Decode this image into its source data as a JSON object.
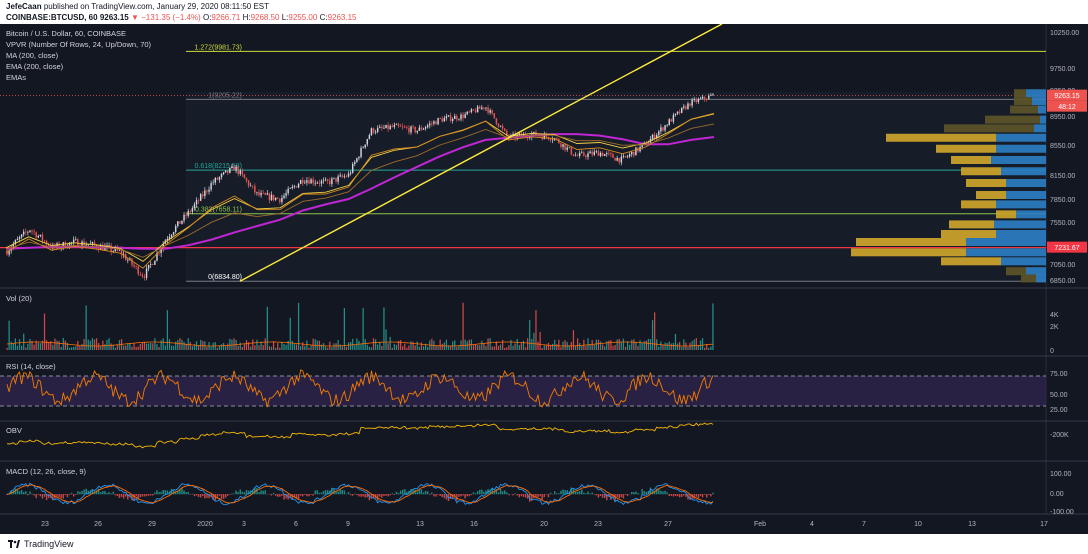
{
  "header": {
    "author": "JefeCaan",
    "published": "published on TradingView.com, January 29, 2020 08:11:50 EST",
    "symbol": "COINBASE:BTCUSD, 60",
    "price": "9263.15",
    "change": "−131.35 (−1.4%)",
    "o_label": "O:",
    "o": "9266.71",
    "h_label": "H:",
    "h": "9268.50",
    "l_label": "L:",
    "l": "9255.00",
    "c_label": "C:",
    "c": "9263.15"
  },
  "legend": [
    "Bitcoin / U.S. Dollar, 60, COINBASE",
    "VPVR (Number Of Rows, 24, Up/Down, 70)",
    "MA (200, close)",
    "EMA (200, close)",
    "EMAs"
  ],
  "panes": {
    "vol_label": "Vol (20)",
    "rsi_label": "RSI (14, close)",
    "obv_label": "OBV",
    "macd_label": "MACD (12, 26, close, 9)"
  },
  "fib_levels": [
    {
      "label": "1.272(9981.73)",
      "value": 9981.73,
      "color": "#cddc39"
    },
    {
      "label": "1(9205.22)",
      "value": 9205.22,
      "color": "#787b86"
    },
    {
      "label": "0.618(8215.58)",
      "value": 8215.58,
      "color": "#26a69a"
    },
    {
      "label": "0.382(7658.11)",
      "value": 7658.11,
      "color": "#8bc34a"
    },
    {
      "label": "0(6834.80)",
      "value": 6834.8,
      "color": "#787b86"
    }
  ],
  "price_badges": {
    "last": "9263.15",
    "countdown": "48:12",
    "level": "7231.67"
  },
  "footer": {
    "brand": "TradingView"
  },
  "chart_data": [
    {
      "type": "candlestick",
      "title": "Bitcoin / U.S. Dollar, 60, COINBASE",
      "y_ticks": [
        10250,
        9750,
        9350,
        8950,
        8550,
        8150,
        7850,
        7550,
        7250,
        7050,
        6850
      ],
      "y_tick_labels": [
        "10250.00",
        "9750.00",
        "9350.00",
        "8950.00",
        "8550.00",
        "8150.00",
        "7850.00",
        "7550.00",
        "7250.00",
        "7050.00",
        "6850.00"
      ],
      "x_tick_labels": [
        "23",
        "26",
        "29",
        "2020",
        "3",
        "6",
        "9",
        "13",
        "16",
        "20",
        "23",
        "27",
        "Feb",
        "4",
        "7",
        "10",
        "13",
        "17"
      ],
      "x": [
        "Dec 22",
        "Dec 24",
        "Dec 26",
        "Dec 28",
        "Dec 30",
        "Jan 1",
        "Jan 3",
        "Jan 5",
        "Jan 6",
        "Jan 7",
        "Jan 8",
        "Jan 9",
        "Jan 10",
        "Jan 11",
        "Jan 12",
        "Jan 13",
        "Jan 14",
        "Jan 15",
        "Jan 16",
        "Jan 17",
        "Jan 18",
        "Jan 19",
        "Jan 20",
        "Jan 21",
        "Jan 22",
        "Jan 23",
        "Jan 24",
        "Jan 25",
        "Jan 26",
        "Jan 27",
        "Jan 28",
        "Jan 29"
      ],
      "close": [
        7200,
        7460,
        7230,
        7300,
        7250,
        7180,
        6900,
        7350,
        7680,
        8050,
        8250,
        7900,
        7850,
        8100,
        8050,
        8150,
        8750,
        8800,
        8750,
        8900,
        8950,
        9100,
        8650,
        8700,
        8650,
        8400,
        8450,
        8350,
        8550,
        8850,
        9150,
        9263.15
      ],
      "ma200": [
        7220,
        7230,
        7240,
        7240,
        7235,
        7230,
        7220,
        7220,
        7260,
        7330,
        7420,
        7500,
        7580,
        7700,
        7780,
        7850,
        7980,
        8120,
        8260,
        8400,
        8520,
        8620,
        8650,
        8680,
        8700,
        8700,
        8680,
        8630,
        8560,
        8560,
        8620,
        8660
      ],
      "volume_profile_note": "VPVR 24 rows, Up/Down",
      "volume_y_ticks": [
        "4K",
        "2K",
        "0"
      ],
      "rsi_ticks": [
        "75.00",
        "50.00",
        "25.00"
      ],
      "rsi_band": [
        30,
        70
      ],
      "obv_tick": "-200K",
      "macd_ticks": [
        "100.00",
        "0.00",
        "-100.00"
      ]
    }
  ]
}
